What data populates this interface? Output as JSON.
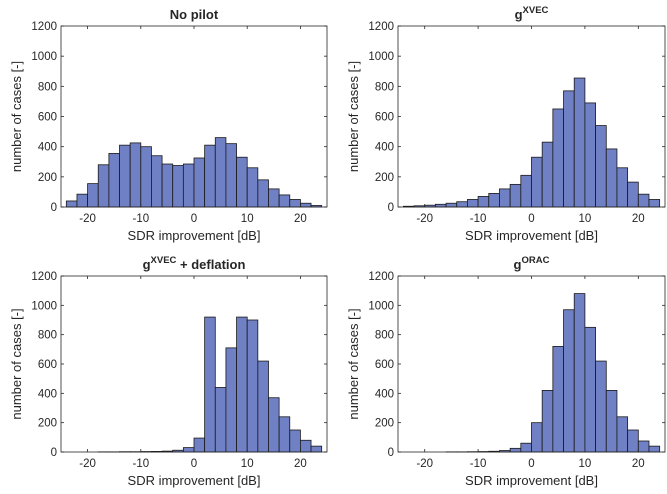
{
  "colors": {
    "bar_fill": "#7080c4",
    "bar_edge": "#1a1a1a",
    "axis": "#262626"
  },
  "chart_data": [
    {
      "type": "bar",
      "title": {
        "main": "No pilot",
        "superscript": "",
        "suffix": ""
      },
      "xlabel": "SDR improvement [dB]",
      "ylabel": "number of cases [-]",
      "xlim": [
        -25,
        25
      ],
      "ylim": [
        0,
        1200
      ],
      "xticks": [
        -20,
        -10,
        0,
        10,
        20
      ],
      "yticks": [
        0,
        200,
        400,
        600,
        800,
        1000,
        1200
      ],
      "grid": false,
      "bin_edges": [
        -24,
        -22,
        -20,
        -18,
        -16,
        -14,
        -12,
        -10,
        -8,
        -6,
        -4,
        -2,
        0,
        2,
        4,
        6,
        8,
        10,
        12,
        14,
        16,
        18,
        20,
        22,
        24
      ],
      "values": [
        40,
        85,
        155,
        280,
        355,
        410,
        425,
        400,
        340,
        285,
        275,
        285,
        325,
        410,
        460,
        420,
        330,
        260,
        180,
        120,
        80,
        50,
        25,
        10
      ]
    },
    {
      "type": "bar",
      "title": {
        "main": "g",
        "superscript": "XVEC",
        "suffix": ""
      },
      "xlabel": "SDR improvement [dB]",
      "ylabel": "number of cases [-]",
      "xlim": [
        -25,
        25
      ],
      "ylim": [
        0,
        1200
      ],
      "xticks": [
        -20,
        -10,
        0,
        10,
        20
      ],
      "yticks": [
        0,
        200,
        400,
        600,
        800,
        1000,
        1200
      ],
      "grid": false,
      "bin_edges": [
        -24,
        -22,
        -20,
        -18,
        -16,
        -14,
        -12,
        -10,
        -8,
        -6,
        -4,
        -2,
        0,
        2,
        4,
        6,
        8,
        10,
        12,
        14,
        16,
        18,
        20,
        22,
        24
      ],
      "values": [
        5,
        8,
        12,
        18,
        25,
        35,
        50,
        70,
        90,
        120,
        150,
        210,
        330,
        430,
        650,
        770,
        855,
        690,
        540,
        385,
        260,
        165,
        85,
        50
      ]
    },
    {
      "type": "bar",
      "title": {
        "main": "g",
        "superscript": "XVEC",
        "suffix": " + deflation"
      },
      "xlabel": "SDR improvement [dB]",
      "ylabel": "number of cases [-]",
      "xlim": [
        -25,
        25
      ],
      "ylim": [
        0,
        1200
      ],
      "xticks": [
        -20,
        -10,
        0,
        10,
        20
      ],
      "yticks": [
        0,
        200,
        400,
        600,
        800,
        1000,
        1200
      ],
      "grid": false,
      "bin_edges": [
        -24,
        -22,
        -20,
        -18,
        -16,
        -14,
        -12,
        -10,
        -8,
        -6,
        -4,
        -2,
        0,
        2,
        4,
        6,
        8,
        10,
        12,
        14,
        16,
        18,
        20,
        22,
        24
      ],
      "values": [
        0,
        0,
        0,
        1,
        1,
        2,
        2,
        3,
        4,
        6,
        12,
        30,
        95,
        920,
        440,
        710,
        920,
        900,
        620,
        370,
        240,
        150,
        80,
        40
      ]
    },
    {
      "type": "bar",
      "title": {
        "main": "g",
        "superscript": "ORAC",
        "suffix": ""
      },
      "xlabel": "SDR improvement [dB]",
      "ylabel": "number of cases [-]",
      "xlim": [
        -25,
        25
      ],
      "ylim": [
        0,
        1200
      ],
      "xticks": [
        -20,
        -10,
        0,
        10,
        20
      ],
      "yticks": [
        0,
        200,
        400,
        600,
        800,
        1000,
        1200
      ],
      "grid": false,
      "bin_edges": [
        -24,
        -22,
        -20,
        -18,
        -16,
        -14,
        -12,
        -10,
        -8,
        -6,
        -4,
        -2,
        0,
        2,
        4,
        6,
        8,
        10,
        12,
        14,
        16,
        18,
        20,
        22,
        24
      ],
      "values": [
        0,
        0,
        0,
        0,
        1,
        1,
        2,
        3,
        5,
        10,
        25,
        60,
        200,
        420,
        720,
        970,
        1080,
        850,
        620,
        420,
        240,
        150,
        75,
        40
      ]
    }
  ]
}
